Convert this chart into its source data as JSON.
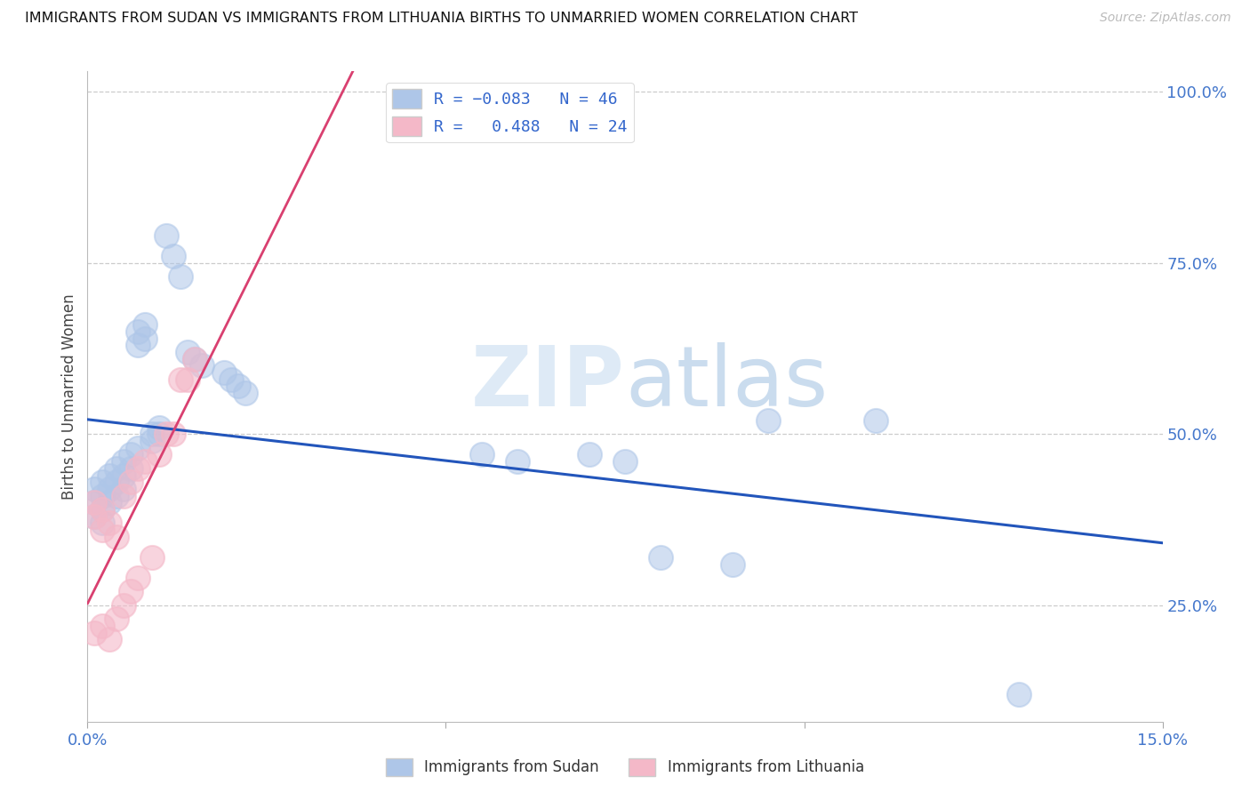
{
  "title": "IMMIGRANTS FROM SUDAN VS IMMIGRANTS FROM LITHUANIA BIRTHS TO UNMARRIED WOMEN CORRELATION CHART",
  "source": "Source: ZipAtlas.com",
  "ylabel": "Births to Unmarried Women",
  "xlim": [
    0.0,
    0.15
  ],
  "ylim": [
    0.08,
    1.03
  ],
  "x_ticks": [
    0.0,
    0.05,
    0.1,
    0.15
  ],
  "x_tick_labels": [
    "0.0%",
    "",
    "",
    "15.0%"
  ],
  "y_ticks_right": [
    0.25,
    0.5,
    0.75,
    1.0
  ],
  "y_tick_labels_right": [
    "25.0%",
    "50.0%",
    "75.0%",
    "100.0%"
  ],
  "sudan_color": "#aec6e8",
  "lithuania_color": "#f4b8c8",
  "sudan_trend_color": "#2255bb",
  "lithuania_trend_color": "#d94070",
  "watermark_zip": "ZIP",
  "watermark_atlas": "atlas",
  "sudan_x": [
    0.001,
    0.001,
    0.001,
    0.002,
    0.002,
    0.002,
    0.002,
    0.003,
    0.003,
    0.003,
    0.004,
    0.004,
    0.004,
    0.005,
    0.005,
    0.005,
    0.006,
    0.006,
    0.007,
    0.007,
    0.007,
    0.008,
    0.008,
    0.009,
    0.009,
    0.01,
    0.01,
    0.011,
    0.012,
    0.013,
    0.014,
    0.015,
    0.016,
    0.019,
    0.02,
    0.021,
    0.022,
    0.055,
    0.06,
    0.07,
    0.075,
    0.08,
    0.09,
    0.095,
    0.11,
    0.13
  ],
  "sudan_y": [
    0.42,
    0.4,
    0.38,
    0.43,
    0.41,
    0.39,
    0.37,
    0.44,
    0.42,
    0.4,
    0.45,
    0.43,
    0.41,
    0.46,
    0.44,
    0.42,
    0.47,
    0.45,
    0.65,
    0.63,
    0.48,
    0.66,
    0.64,
    0.5,
    0.49,
    0.51,
    0.5,
    0.79,
    0.76,
    0.73,
    0.62,
    0.61,
    0.6,
    0.59,
    0.58,
    0.57,
    0.56,
    0.47,
    0.46,
    0.47,
    0.46,
    0.32,
    0.31,
    0.52,
    0.52,
    0.12
  ],
  "lithuania_x": [
    0.001,
    0.001,
    0.001,
    0.002,
    0.002,
    0.002,
    0.003,
    0.003,
    0.004,
    0.004,
    0.005,
    0.005,
    0.006,
    0.006,
    0.007,
    0.007,
    0.008,
    0.009,
    0.01,
    0.011,
    0.012,
    0.013,
    0.014,
    0.015
  ],
  "lithuania_y": [
    0.4,
    0.38,
    0.21,
    0.39,
    0.36,
    0.22,
    0.37,
    0.2,
    0.35,
    0.23,
    0.41,
    0.25,
    0.43,
    0.27,
    0.45,
    0.29,
    0.46,
    0.32,
    0.47,
    0.5,
    0.5,
    0.58,
    0.58,
    0.61
  ]
}
